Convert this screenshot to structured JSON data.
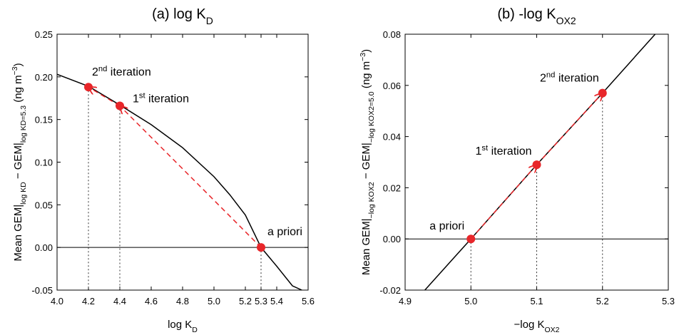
{
  "chart_data": [
    {
      "type": "line",
      "title": [
        {
          "t": "(a) log K"
        },
        {
          "t": "D",
          "pos": "sub"
        }
      ],
      "xlabel": [
        {
          "t": "log K"
        },
        {
          "t": "D",
          "pos": "sub"
        }
      ],
      "ylabel": [
        {
          "t": "Mean GEM|"
        },
        {
          "t": "log KD",
          "pos": "sub"
        },
        {
          "t": " − GEM|"
        },
        {
          "t": "log KD=5.3",
          "pos": "sub"
        },
        {
          "t": " (ng m"
        },
        {
          "t": "−3",
          "pos": "sup"
        },
        {
          "t": ")"
        }
      ],
      "x": [
        4.0,
        4.2,
        4.4,
        4.6,
        4.8,
        5.0,
        5.1,
        5.2,
        5.3,
        5.4,
        5.5,
        5.56
      ],
      "values": [
        0.203,
        0.189,
        0.167,
        0.144,
        0.117,
        0.083,
        0.062,
        0.038,
        0.0,
        -0.022,
        -0.045,
        -0.05
      ],
      "points": [
        {
          "x": 5.3,
          "y": 0.0,
          "label": [
            {
              "t": "a priori"
            }
          ]
        },
        {
          "x": 4.4,
          "y": 0.166,
          "label": [
            {
              "t": "1"
            },
            {
              "t": "st",
              "pos": "sup"
            },
            {
              "t": " iteration"
            }
          ]
        },
        {
          "x": 4.2,
          "y": 0.188,
          "label": [
            {
              "t": "2"
            },
            {
              "t": "nd",
              "pos": "sup"
            },
            {
              "t": " iteration"
            }
          ]
        }
      ],
      "line_color": "#000000",
      "point_color": "#e8262a",
      "xlim": [
        4.0,
        5.6
      ],
      "xticks": [
        {
          "value": 4.0,
          "label": "4.0"
        },
        4.2,
        4.4,
        4.6,
        4.8,
        {
          "value": 5.0,
          "label": "5.0"
        },
        5.2,
        5.3,
        5.4,
        5.6
      ],
      "ylim": [
        -0.05,
        0.25
      ],
      "yticks": [
        -0.05,
        {
          "value": 0.0,
          "label": "0.00"
        },
        0.05,
        {
          "value": 0.1,
          "label": "0.10"
        },
        0.15,
        {
          "value": 0.2,
          "label": "0.20"
        },
        0.25
      ]
    },
    {
      "type": "line",
      "title": [
        {
          "t": "(b) -log K"
        },
        {
          "t": "OX2",
          "pos": "sub"
        }
      ],
      "xlabel": [
        {
          "t": "−log K"
        },
        {
          "t": "OX2",
          "pos": "sub"
        }
      ],
      "ylabel": [
        {
          "t": "Mean GEM|"
        },
        {
          "t": "−log KOX2",
          "pos": "sub"
        },
        {
          "t": " − GEM|"
        },
        {
          "t": "−log KOX2=5.0",
          "pos": "sub"
        },
        {
          "t": " (ng m"
        },
        {
          "t": "−3",
          "pos": "sup"
        },
        {
          "t": ")"
        }
      ],
      "x": [
        4.93,
        5.0,
        5.1,
        5.2,
        5.28
      ],
      "values": [
        -0.02,
        0.0,
        0.029,
        0.057,
        0.08
      ],
      "points": [
        {
          "x": 5.0,
          "y": 0.0,
          "label": [
            {
              "t": "a priori"
            }
          ]
        },
        {
          "x": 5.1,
          "y": 0.029,
          "label": [
            {
              "t": "1"
            },
            {
              "t": "st",
              "pos": "sup"
            },
            {
              "t": " iteration"
            }
          ]
        },
        {
          "x": 5.2,
          "y": 0.057,
          "label": [
            {
              "t": "2"
            },
            {
              "t": "nd",
              "pos": "sup"
            },
            {
              "t": " iteration"
            }
          ]
        }
      ],
      "line_color": "#000000",
      "point_color": "#e8262a",
      "xlim": [
        4.9,
        5.3
      ],
      "xticks": [
        4.9,
        {
          "value": 5.0,
          "label": "5.0"
        },
        5.1,
        5.2,
        5.3
      ],
      "ylim": [
        -0.02,
        0.08
      ],
      "yticks": [
        -0.02,
        {
          "value": 0.0,
          "label": "0.00"
        },
        0.02,
        0.04,
        0.06,
        0.08
      ]
    }
  ]
}
